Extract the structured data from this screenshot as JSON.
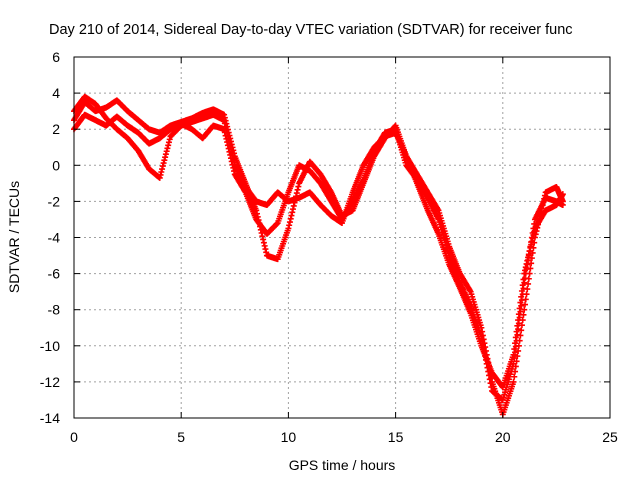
{
  "chart_data": {
    "type": "scatter",
    "title": "Day 210 of 2014, Sidereal Day-to-day VTEC variation (SDTVAR) for receiver func",
    "xlabel": "GPS time / hours",
    "ylabel": "SDTVAR / TECUs",
    "xlim": [
      0,
      25
    ],
    "ylim": [
      -14,
      6
    ],
    "xticks": [
      0,
      5,
      10,
      15,
      20,
      25
    ],
    "yticks": [
      -14,
      -12,
      -10,
      -8,
      -6,
      -4,
      -2,
      0,
      2,
      4,
      6
    ],
    "grid": true,
    "legend": "none",
    "marker": "plus",
    "series_color": "#ff0000",
    "series": [
      {
        "name": "track-1",
        "x": [
          0.0,
          0.5,
          1.0,
          1.5,
          2.0,
          2.5,
          3.0,
          3.5,
          4.0,
          4.5,
          5.0,
          5.5,
          6.0,
          6.5,
          7.0,
          7.5,
          8.0,
          8.5,
          9.0,
          9.5,
          10.0,
          10.5,
          11.0,
          11.5,
          12.0,
          12.5,
          13.0,
          13.5,
          14.0,
          14.5,
          15.0,
          15.5,
          16.0,
          16.5,
          17.0,
          17.5,
          18.0,
          18.5,
          19.0,
          19.5,
          20.0,
          20.5,
          21.0,
          21.5,
          22.0,
          22.5,
          22.8
        ],
        "y": [
          2.5,
          3.5,
          3.0,
          3.2,
          3.6,
          3.0,
          2.5,
          2.0,
          1.8,
          2.2,
          2.4,
          2.6,
          2.9,
          3.1,
          2.8,
          0.5,
          -1.0,
          -2.5,
          -5.0,
          -5.2,
          -3.5,
          -1.0,
          0.2,
          -0.5,
          -1.5,
          -2.8,
          -2.5,
          -1.0,
          0.5,
          1.5,
          2.2,
          0.5,
          -0.5,
          -1.5,
          -2.5,
          -4.5,
          -6.0,
          -7.0,
          -9.0,
          -12.0,
          -13.8,
          -12.0,
          -8.0,
          -4.0,
          -1.5,
          -1.2,
          -2.0
        ]
      },
      {
        "name": "track-2",
        "x": [
          0.0,
          0.5,
          1.0,
          1.5,
          2.0,
          2.5,
          3.0,
          3.5,
          4.0,
          4.5,
          5.0,
          5.5,
          6.0,
          6.5,
          7.0,
          7.5,
          8.0,
          8.5,
          9.0,
          9.5,
          10.0,
          10.5,
          11.0,
          11.5,
          12.0,
          12.5,
          13.0,
          13.5,
          14.0,
          14.5,
          15.0,
          15.5,
          16.0,
          16.5,
          17.0,
          17.5,
          18.0,
          18.5,
          19.0,
          19.5,
          20.0,
          20.5,
          21.0,
          21.5,
          22.0,
          22.5,
          22.8
        ],
        "y": [
          2.0,
          2.8,
          2.5,
          2.2,
          2.7,
          2.2,
          1.8,
          1.2,
          1.5,
          2.0,
          2.3,
          2.0,
          1.5,
          2.2,
          2.0,
          -0.5,
          -1.5,
          -3.0,
          -3.8,
          -3.2,
          -1.5,
          0.0,
          -0.3,
          -1.0,
          -2.0,
          -3.0,
          -2.0,
          -0.8,
          0.8,
          1.8,
          2.0,
          0.0,
          -0.8,
          -1.8,
          -3.0,
          -5.0,
          -6.5,
          -7.8,
          -9.5,
          -12.5,
          -13.0,
          -11.0,
          -6.5,
          -3.0,
          -1.8,
          -2.0,
          -2.2
        ]
      },
      {
        "name": "track-3",
        "x": [
          0.0,
          0.5,
          1.0,
          1.5,
          2.0,
          2.5,
          3.0,
          3.5,
          4.0,
          4.5,
          5.0,
          5.5,
          6.0,
          6.5,
          7.0,
          7.5,
          8.0,
          8.5,
          9.0,
          9.5,
          10.0,
          10.5,
          11.0,
          11.5,
          12.0,
          12.5,
          13.0,
          13.5,
          14.0,
          14.5,
          15.0,
          15.5,
          16.0,
          16.5,
          17.0,
          17.5,
          18.0,
          18.5,
          19.0,
          19.5,
          20.0,
          20.5,
          21.0,
          21.5,
          22.0,
          22.5,
          22.8
        ],
        "y": [
          3.0,
          3.8,
          3.4,
          2.6,
          2.0,
          1.5,
          0.8,
          -0.2,
          -0.7,
          1.6,
          2.2,
          2.4,
          2.6,
          2.8,
          2.5,
          0.0,
          -1.2,
          -2.0,
          -2.2,
          -1.5,
          -2.0,
          -1.8,
          -1.5,
          -2.2,
          -2.8,
          -3.2,
          -1.5,
          0.0,
          1.0,
          1.6,
          1.8,
          0.5,
          -1.0,
          -2.5,
          -3.8,
          -5.5,
          -6.8,
          -8.2,
          -10.0,
          -11.5,
          -12.3,
          -10.5,
          -6.0,
          -3.5,
          -2.5,
          -2.2,
          -1.6
        ]
      }
    ]
  }
}
